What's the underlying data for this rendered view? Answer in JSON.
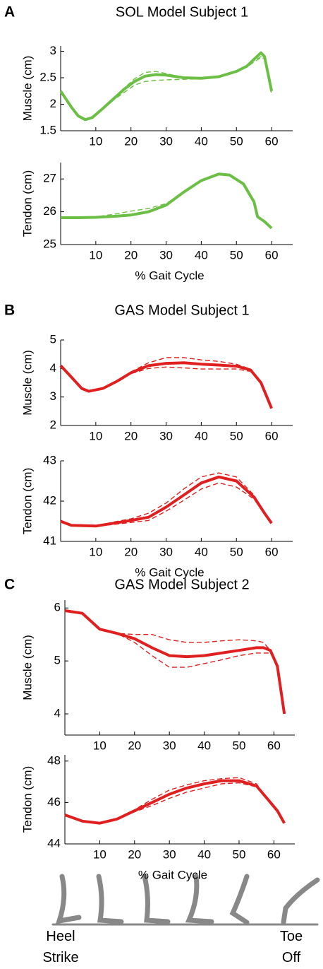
{
  "panels": [
    "A",
    "B",
    "C"
  ],
  "gait_phase": [
    "Heel Strike",
    "Toe Off"
  ],
  "chart_data": [
    {
      "type": "line",
      "title": "SOL Model Subject 1",
      "ylabel": "Muscle (cm)",
      "x": [
        0,
        3,
        5,
        7,
        9,
        12,
        15,
        18,
        21,
        24,
        27,
        30,
        35,
        40,
        45,
        50,
        53,
        55,
        57,
        58,
        60
      ],
      "xlim": [
        0,
        66
      ],
      "xticks": [
        10,
        20,
        30,
        40,
        50,
        60
      ],
      "ylim": [
        1.5,
        3.1
      ],
      "yticks": [
        1.5,
        2,
        2.5,
        3
      ],
      "series": [
        {
          "color": "#6cbf45",
          "style": "solid",
          "values": [
            2.25,
            1.95,
            1.78,
            1.71,
            1.75,
            1.92,
            2.1,
            2.28,
            2.43,
            2.53,
            2.56,
            2.55,
            2.5,
            2.49,
            2.52,
            2.62,
            2.72,
            2.85,
            2.97,
            2.9,
            2.25
          ]
        },
        {
          "color": "#6cbf45",
          "style": "dashed",
          "values": [
            2.25,
            1.95,
            1.78,
            1.71,
            1.75,
            1.9,
            2.1,
            2.3,
            2.48,
            2.6,
            2.62,
            2.58,
            2.5,
            2.48,
            2.52,
            2.62,
            2.72,
            2.82,
            2.9,
            2.88,
            2.2
          ]
        },
        {
          "color": "#6cbf45",
          "style": "dashed",
          "values": [
            2.25,
            1.95,
            1.78,
            1.71,
            1.75,
            1.92,
            2.08,
            2.22,
            2.36,
            2.43,
            2.45,
            2.46,
            2.47,
            2.48,
            2.52,
            2.6,
            2.7,
            2.8,
            2.88,
            2.86,
            2.18
          ]
        }
      ]
    },
    {
      "type": "line",
      "ylabel": "Tendon (cm)",
      "xlabel": "% Gait Cycle",
      "x": [
        0,
        5,
        10,
        15,
        20,
        25,
        30,
        35,
        40,
        45,
        48,
        52,
        55,
        56,
        58,
        60
      ],
      "xlim": [
        0,
        66
      ],
      "xticks": [
        10,
        20,
        30,
        40,
        50,
        60
      ],
      "ylim": [
        25,
        27.5
      ],
      "yticks": [
        25,
        26,
        27
      ],
      "series": [
        {
          "color": "#6cbf45",
          "style": "solid",
          "values": [
            25.82,
            25.82,
            25.83,
            25.86,
            25.9,
            26.0,
            26.2,
            26.6,
            26.95,
            27.15,
            27.12,
            26.85,
            26.3,
            25.85,
            25.7,
            25.5
          ]
        },
        {
          "color": "#6cbf45",
          "style": "dashed",
          "values": [
            25.82,
            25.82,
            25.85,
            25.92,
            26.02,
            26.1,
            26.25,
            26.6,
            26.95,
            27.15,
            27.12,
            26.85,
            26.3,
            25.85,
            25.7,
            25.5
          ]
        }
      ]
    },
    {
      "type": "line",
      "title": "GAS Model Subject 1",
      "ylabel": "Muscle (cm)",
      "x": [
        0,
        3,
        6,
        8,
        12,
        16,
        20,
        25,
        30,
        35,
        40,
        45,
        50,
        54,
        57,
        60
      ],
      "xlim": [
        0,
        66
      ],
      "xticks": [
        10,
        20,
        30,
        40,
        50,
        60
      ],
      "ylim": [
        2,
        5
      ],
      "yticks": [
        2,
        3,
        4,
        5
      ],
      "series": [
        {
          "color": "#e02020",
          "style": "solid",
          "values": [
            4.1,
            3.7,
            3.3,
            3.2,
            3.3,
            3.55,
            3.85,
            4.1,
            4.18,
            4.2,
            4.15,
            4.12,
            4.08,
            3.95,
            3.5,
            2.6
          ]
        },
        {
          "color": "#e02020",
          "style": "dashed",
          "values": [
            4.1,
            3.7,
            3.3,
            3.2,
            3.3,
            3.55,
            3.88,
            4.2,
            4.38,
            4.38,
            4.3,
            4.25,
            4.15,
            3.98,
            3.5,
            2.6
          ]
        },
        {
          "color": "#e02020",
          "style": "dashed",
          "values": [
            4.1,
            3.7,
            3.3,
            3.2,
            3.3,
            3.55,
            3.82,
            4.0,
            4.05,
            4.02,
            3.98,
            3.98,
            3.98,
            3.9,
            3.5,
            2.6
          ]
        }
      ]
    },
    {
      "type": "line",
      "ylabel": "Tendon (cm)",
      "xlabel": "% Gait Cycle",
      "x": [
        0,
        3,
        10,
        15,
        20,
        25,
        30,
        35,
        40,
        45,
        50,
        55,
        58,
        60
      ],
      "xlim": [
        0,
        66
      ],
      "xticks": [
        10,
        20,
        30,
        40,
        50,
        60
      ],
      "ylim": [
        41,
        43
      ],
      "yticks": [
        41,
        42,
        43
      ],
      "series": [
        {
          "color": "#e02020",
          "style": "solid",
          "values": [
            41.5,
            41.4,
            41.38,
            41.45,
            41.52,
            41.6,
            41.85,
            42.15,
            42.45,
            42.6,
            42.5,
            42.1,
            41.7,
            41.45
          ]
        },
        {
          "color": "#e02020",
          "style": "dashed",
          "values": [
            41.5,
            41.4,
            41.38,
            41.48,
            41.56,
            41.7,
            41.95,
            42.3,
            42.6,
            42.7,
            42.6,
            42.15,
            41.72,
            41.45
          ]
        },
        {
          "color": "#e02020",
          "style": "dashed",
          "values": [
            41.5,
            41.4,
            41.38,
            41.42,
            41.47,
            41.52,
            41.75,
            42.02,
            42.3,
            42.45,
            42.35,
            42.05,
            41.68,
            41.45
          ]
        }
      ]
    },
    {
      "type": "line",
      "title": "GAS Model Subject 2",
      "ylabel": "Muscle (cm)",
      "x": [
        0,
        5,
        10,
        15,
        20,
        25,
        30,
        35,
        40,
        45,
        50,
        55,
        57,
        59,
        61,
        63
      ],
      "xlim": [
        0,
        66
      ],
      "xticks": [
        10,
        20,
        30,
        40,
        50,
        60
      ],
      "ylim": [
        3.6,
        6.15
      ],
      "yticks": [
        4,
        5,
        6
      ],
      "series": [
        {
          "color": "#e02020",
          "style": "solid",
          "values": [
            5.95,
            5.9,
            5.6,
            5.52,
            5.42,
            5.25,
            5.1,
            5.08,
            5.1,
            5.15,
            5.2,
            5.25,
            5.25,
            5.2,
            4.9,
            4.0
          ]
        },
        {
          "color": "#e02020",
          "style": "dashed",
          "values": [
            5.95,
            5.9,
            5.6,
            5.52,
            5.5,
            5.5,
            5.4,
            5.35,
            5.35,
            5.38,
            5.4,
            5.38,
            5.35,
            5.2,
            4.9,
            4.0
          ]
        },
        {
          "color": "#e02020",
          "style": "dashed",
          "values": [
            5.95,
            5.9,
            5.6,
            5.52,
            5.35,
            5.1,
            4.88,
            4.88,
            4.95,
            5.02,
            5.1,
            5.15,
            5.15,
            5.15,
            4.9,
            4.0
          ]
        }
      ]
    },
    {
      "type": "line",
      "ylabel": "Tendon (cm)",
      "xlabel": "% Gait Cycle",
      "x": [
        0,
        5,
        10,
        15,
        20,
        25,
        30,
        35,
        40,
        45,
        50,
        55,
        58,
        61,
        63
      ],
      "xlim": [
        0,
        66
      ],
      "xticks": [
        10,
        20,
        30,
        40,
        50,
        60
      ],
      "ylim": [
        44,
        48.3
      ],
      "yticks": [
        44,
        46,
        48
      ],
      "series": [
        {
          "color": "#e02020",
          "style": "solid",
          "values": [
            45.4,
            45.1,
            45.0,
            45.2,
            45.6,
            46.0,
            46.4,
            46.7,
            46.9,
            47.05,
            47.05,
            46.8,
            46.2,
            45.6,
            45.0
          ]
        },
        {
          "color": "#e02020",
          "style": "dashed",
          "values": [
            45.4,
            45.1,
            45.0,
            45.2,
            45.65,
            46.15,
            46.6,
            46.85,
            47.05,
            47.15,
            47.2,
            46.9,
            46.2,
            45.6,
            45.0
          ]
        },
        {
          "color": "#e02020",
          "style": "dashed",
          "values": [
            45.4,
            45.1,
            45.0,
            45.2,
            45.55,
            45.85,
            46.2,
            46.5,
            46.7,
            46.9,
            46.95,
            46.75,
            46.2,
            45.6,
            45.0
          ]
        }
      ]
    }
  ]
}
